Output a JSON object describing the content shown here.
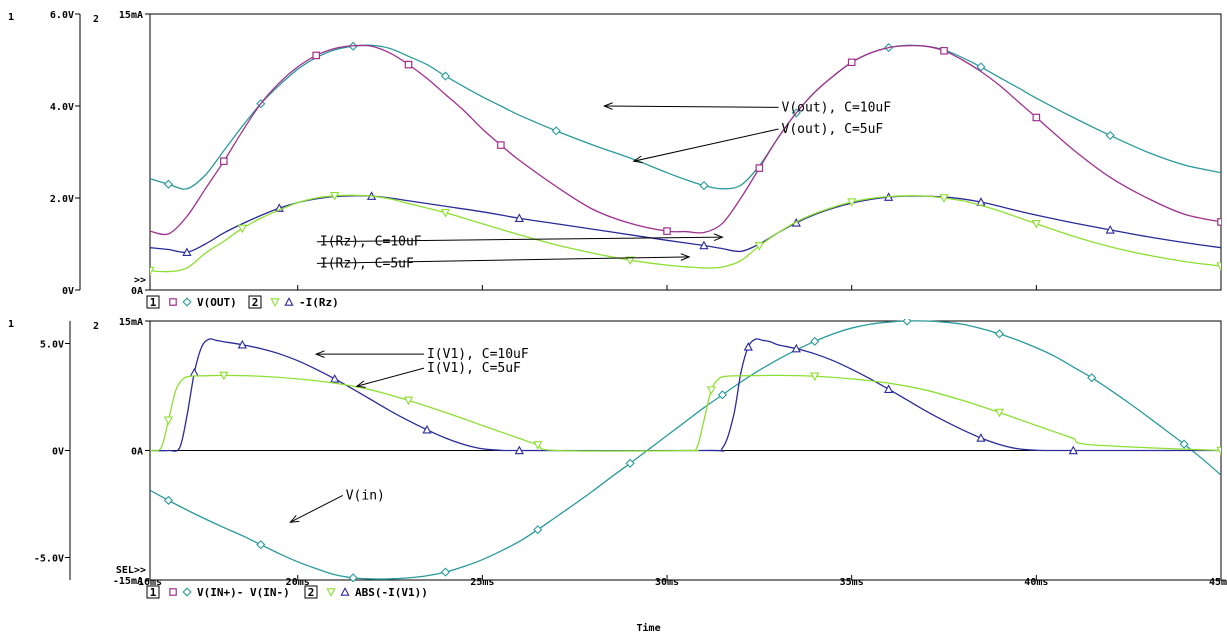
{
  "chart_data": [
    {
      "type": "line",
      "panel": "top",
      "left_axis": {
        "index": "1",
        "ylim": [
          0,
          6
        ],
        "ticks": [
          {
            "v": 0,
            "label": "0V"
          },
          {
            "v": 2,
            "label": "2.0V"
          },
          {
            "v": 4,
            "label": "4.0V"
          },
          {
            "v": 6,
            "label": "6.0V"
          }
        ]
      },
      "right_axis": {
        "index": "2",
        "ylim": [
          0,
          15
        ],
        "ticks": [
          {
            "v": 0,
            "label": "0A"
          },
          {
            "v": 15,
            "label": "15mA"
          }
        ],
        "marker": ">>"
      },
      "xlim": [
        16,
        45
      ],
      "legend": [
        {
          "kind": "box",
          "text": "1"
        },
        {
          "kind": "square",
          "color": "#a0308e"
        },
        {
          "kind": "diamond",
          "color": "#2a9a9a"
        },
        {
          "kind": "text",
          "text": "V(OUT)"
        },
        {
          "kind": "box",
          "text": "2"
        },
        {
          "kind": "tri-down",
          "color": "#8ce030"
        },
        {
          "kind": "tri-up",
          "color": "#2a2a9a"
        },
        {
          "kind": "text",
          "text": "-I(Rz)"
        }
      ],
      "series": [
        {
          "axis": 1,
          "marker": "diamond",
          "color": "#2a9a9a",
          "x": [
            16,
            16.5,
            17,
            17.5,
            18,
            18.5,
            19,
            19.5,
            20,
            20.5,
            21,
            21.5,
            22,
            22.5,
            23,
            23.5,
            24,
            24.5,
            25,
            25.5,
            26,
            27,
            28,
            29,
            30,
            30.5,
            31,
            31.5,
            32,
            32.5,
            33,
            33.5,
            34,
            34.5,
            35,
            35.5,
            36,
            36.5,
            37,
            37.5,
            38,
            38.5,
            39,
            39.5,
            40,
            41,
            42,
            43,
            44,
            45
          ],
          "y": [
            2.42,
            2.3,
            2.2,
            2.5,
            3.03,
            3.56,
            4.05,
            4.45,
            4.8,
            5.05,
            5.22,
            5.3,
            5.32,
            5.25,
            5.08,
            4.9,
            4.65,
            4.42,
            4.2,
            4.0,
            3.8,
            3.46,
            3.15,
            2.87,
            2.55,
            2.4,
            2.27,
            2.2,
            2.28,
            2.7,
            3.3,
            3.85,
            4.3,
            4.65,
            4.95,
            5.15,
            5.27,
            5.32,
            5.3,
            5.22,
            5.05,
            4.85,
            4.62,
            4.4,
            4.17,
            3.75,
            3.36,
            3.0,
            2.72,
            2.55
          ]
        },
        {
          "axis": 1,
          "marker": "square",
          "color": "#a0308e",
          "x": [
            16,
            16.5,
            17,
            17.5,
            18,
            18.5,
            19,
            19.5,
            20,
            20.5,
            21,
            21.5,
            22,
            22.5,
            23,
            23.5,
            24,
            24.5,
            25,
            25.5,
            26,
            27,
            28,
            29,
            30,
            30.5,
            31,
            31.5,
            32,
            32.5,
            33,
            33.5,
            34,
            34.5,
            35,
            35.5,
            36,
            36.5,
            37,
            37.5,
            38,
            38.5,
            39,
            39.5,
            40,
            41,
            42,
            43,
            44,
            45
          ],
          "y": [
            1.28,
            1.22,
            1.6,
            2.2,
            2.8,
            3.45,
            4.05,
            4.5,
            4.85,
            5.1,
            5.25,
            5.31,
            5.3,
            5.15,
            4.9,
            4.6,
            4.25,
            3.9,
            3.5,
            3.15,
            2.82,
            2.25,
            1.75,
            1.45,
            1.28,
            1.27,
            1.25,
            1.45,
            2.0,
            2.65,
            3.3,
            3.85,
            4.3,
            4.65,
            4.95,
            5.15,
            5.27,
            5.31,
            5.3,
            5.2,
            5.0,
            4.75,
            4.45,
            4.1,
            3.75,
            3.05,
            2.45,
            2.0,
            1.65,
            1.48
          ]
        },
        {
          "axis": 2,
          "marker": "tri-up",
          "color": "#2a2a9a",
          "x": [
            16,
            16.5,
            17,
            17.5,
            18,
            18.5,
            19,
            19.5,
            20,
            20.5,
            21,
            21.5,
            22,
            22.5,
            23,
            24,
            25,
            26,
            27,
            28,
            29,
            30,
            31,
            31.5,
            32,
            32.5,
            33,
            33.5,
            34,
            34.5,
            35,
            35.5,
            36,
            36.5,
            37,
            37.5,
            38,
            38.5,
            39,
            39.5,
            40,
            41,
            42,
            43,
            44,
            45
          ],
          "y": [
            2.3,
            2.2,
            2.05,
            2.5,
            3.1,
            3.6,
            4.05,
            4.45,
            4.75,
            4.95,
            5.08,
            5.12,
            5.1,
            5.0,
            4.85,
            4.55,
            4.25,
            3.9,
            3.6,
            3.3,
            3.0,
            2.7,
            2.42,
            2.25,
            2.1,
            2.5,
            3.1,
            3.65,
            4.1,
            4.45,
            4.72,
            4.92,
            5.05,
            5.1,
            5.1,
            5.05,
            4.95,
            4.78,
            4.55,
            4.3,
            4.07,
            3.65,
            3.27,
            2.9,
            2.58,
            2.3
          ]
        },
        {
          "axis": 2,
          "marker": "tri-down",
          "color": "#8ce030",
          "x": [
            16,
            16.5,
            17,
            17.5,
            18,
            18.5,
            19,
            19.5,
            20,
            20.5,
            21,
            21.5,
            22,
            22.5,
            23,
            24,
            25,
            26,
            27,
            28,
            29,
            30,
            31,
            31.5,
            32,
            32.5,
            33,
            33.5,
            34,
            34.5,
            35,
            35.5,
            36,
            36.5,
            37,
            37.5,
            38,
            38.5,
            39,
            39.5,
            40,
            41,
            42,
            43,
            44,
            45
          ],
          "y": [
            1.05,
            1.0,
            1.2,
            2.0,
            2.65,
            3.35,
            3.9,
            4.35,
            4.75,
            5.0,
            5.12,
            5.15,
            5.1,
            4.95,
            4.7,
            4.2,
            3.6,
            3.0,
            2.45,
            2.0,
            1.62,
            1.35,
            1.2,
            1.25,
            1.6,
            2.4,
            3.1,
            3.7,
            4.15,
            4.5,
            4.78,
            4.97,
            5.08,
            5.12,
            5.1,
            5.0,
            4.85,
            4.6,
            4.3,
            3.95,
            3.6,
            2.92,
            2.35,
            1.9,
            1.55,
            1.3
          ]
        }
      ],
      "annotations": [
        {
          "text": "V(out), C=10uF",
          "x": 33.1,
          "y": 3.97,
          "tx": 28.3,
          "ty": 4.0
        },
        {
          "text": "V(out), C=5uF",
          "x": 33.1,
          "y": 3.5,
          "tx": 29.1,
          "ty": 2.8
        },
        {
          "text": "I(Rz), C=10uF",
          "x": 20.6,
          "y": 1.05,
          "tx": 31.5,
          "ty": 1.15
        },
        {
          "text": "I(Rz), C=5uF",
          "x": 20.6,
          "y": 0.58,
          "tx": 30.6,
          "ty": 0.72
        }
      ]
    },
    {
      "type": "line",
      "panel": "bottom",
      "left_axis": {
        "index": "1",
        "ylim": [
          -6.05,
          6.05
        ],
        "ticks": [
          {
            "v": -5,
            "label": "-5.0V"
          },
          {
            "v": 0,
            "label": "0V"
          },
          {
            "v": 5,
            "label": "5.0V"
          }
        ]
      },
      "right_axis": {
        "index": "2",
        "ylim": [
          -15,
          15
        ],
        "ticks": [
          {
            "v": -15,
            "label": "-15mA"
          },
          {
            "v": 0,
            "label": "0A"
          },
          {
            "v": 15,
            "label": "15mA"
          }
        ],
        "marker": "SEL>>"
      },
      "xlim": [
        16,
        45
      ],
      "xticks": [
        {
          "v": 16,
          "label": "16ms"
        },
        {
          "v": 20,
          "label": "20ms"
        },
        {
          "v": 25,
          "label": "25ms"
        },
        {
          "v": 30,
          "label": "30ms"
        },
        {
          "v": 35,
          "label": "35ms"
        },
        {
          "v": 40,
          "label": "40ms"
        },
        {
          "v": 45,
          "label": "45ms"
        }
      ],
      "xlabel": "Time",
      "legend": [
        {
          "kind": "box",
          "text": "1"
        },
        {
          "kind": "square",
          "color": "#a0308e"
        },
        {
          "kind": "diamond",
          "color": "#2a9a9a"
        },
        {
          "kind": "text",
          "text": "V(IN+)- V(IN-)"
        },
        {
          "kind": "box",
          "text": "2"
        },
        {
          "kind": "tri-down",
          "color": "#8ce030"
        },
        {
          "kind": "tri-up",
          "color": "#2a2a9a"
        },
        {
          "kind": "text",
          "text": "ABS(-I(V1))"
        }
      ],
      "series": [
        {
          "axis": 1,
          "marker": "diamond",
          "color": "#2a9a9a",
          "x": [
            16,
            16.5,
            17,
            17.5,
            18,
            18.5,
            19,
            19.5,
            20,
            20.5,
            21,
            21.5,
            22,
            22.5,
            23,
            23.5,
            24,
            24.5,
            25,
            25.5,
            26,
            26.5,
            27,
            27.5,
            28,
            28.5,
            29,
            29.5,
            30,
            30.5,
            31,
            31.5,
            32,
            32.5,
            33,
            33.5,
            34,
            34.5,
            35,
            35.5,
            36,
            36.5,
            37,
            37.5,
            38,
            38.5,
            39,
            39.5,
            40,
            40.5,
            41,
            41.5,
            42,
            42.5,
            43,
            43.5,
            44,
            44.5,
            45
          ],
          "y": [
            -1.86,
            -2.33,
            -2.78,
            -3.2,
            -3.6,
            -3.98,
            -4.4,
            -4.82,
            -5.2,
            -5.52,
            -5.8,
            -5.95,
            -6.0,
            -6.0,
            -5.95,
            -5.85,
            -5.68,
            -5.42,
            -5.1,
            -4.7,
            -4.25,
            -3.7,
            -3.1,
            -2.5,
            -1.88,
            -1.23,
            -0.6,
            0.05,
            0.7,
            1.35,
            2.0,
            2.6,
            3.2,
            3.75,
            4.25,
            4.7,
            5.1,
            5.45,
            5.72,
            5.9,
            6.0,
            6.05,
            6.05,
            6.0,
            5.9,
            5.7,
            5.45,
            5.15,
            4.8,
            4.4,
            3.9,
            3.4,
            2.83,
            2.23,
            1.6,
            0.95,
            0.3,
            -0.4,
            -1.15
          ]
        },
        {
          "axis": 2,
          "marker": "tri-up",
          "color": "#2a2a9a",
          "x": [
            16,
            16.5,
            16.8,
            17.0,
            17.2,
            17.4,
            17.6,
            17.8,
            18,
            18.5,
            19,
            19.5,
            20,
            20.5,
            21,
            21.5,
            22,
            22.5,
            23,
            23.5,
            24,
            24.5,
            25,
            25.5,
            26,
            31.0,
            31.5,
            31.8,
            32.0,
            32.2,
            32.4,
            32.6,
            32.8,
            33,
            33.5,
            34,
            34.5,
            35,
            35.5,
            36,
            36.5,
            37,
            37.5,
            38,
            38.5,
            39,
            39.5,
            40,
            40.5,
            41,
            45
          ],
          "y": [
            0,
            0,
            0.3,
            4.0,
            9.0,
            12.0,
            12.9,
            12.75,
            12.6,
            12.25,
            11.8,
            11.2,
            10.4,
            9.4,
            8.3,
            7.1,
            5.85,
            4.6,
            3.45,
            2.4,
            1.45,
            0.7,
            0.2,
            0.03,
            0,
            0,
            0.3,
            4.0,
            9.0,
            12.0,
            12.9,
            12.75,
            12.6,
            12.25,
            11.8,
            11.2,
            10.4,
            9.4,
            8.3,
            7.1,
            5.85,
            4.6,
            3.45,
            2.4,
            1.45,
            0.7,
            0.2,
            0.03,
            0,
            0,
            0
          ]
        },
        {
          "axis": 2,
          "marker": "tri-down",
          "color": "#8ce030",
          "x": [
            16,
            16.3,
            16.5,
            16.7,
            16.9,
            17.1,
            17.5,
            18,
            19,
            20,
            21,
            22,
            23,
            24,
            25,
            25.5,
            26,
            26.5,
            27,
            30.5,
            30.8,
            31.0,
            31.2,
            31.4,
            31.6,
            32,
            33,
            34,
            35,
            36,
            37,
            38,
            39,
            40,
            40.5,
            41,
            41.5,
            45
          ],
          "y": [
            0,
            0.3,
            3.5,
            7.0,
            8.3,
            8.6,
            8.65,
            8.7,
            8.6,
            8.3,
            7.8,
            7.0,
            5.8,
            4.4,
            2.9,
            2.15,
            1.4,
            0.65,
            0,
            0,
            0.3,
            3.5,
            7.0,
            8.3,
            8.6,
            8.65,
            8.7,
            8.6,
            8.3,
            7.8,
            7.0,
            5.8,
            4.4,
            2.9,
            2.15,
            1.4,
            0.65,
            0
          ]
        }
      ],
      "annotations": [
        {
          "text": "I(V1), C=10uF",
          "x": 23.5,
          "y": 4.5,
          "tx": 20.5,
          "ty": 4.5
        },
        {
          "text": "I(V1), C=5uF",
          "x": 23.5,
          "y": 3.85,
          "tx": 21.6,
          "ty": 3.0
        },
        {
          "text": "V(in)",
          "x": 21.3,
          "y": -2.1,
          "tx": 19.8,
          "ty": -3.35
        }
      ]
    }
  ]
}
